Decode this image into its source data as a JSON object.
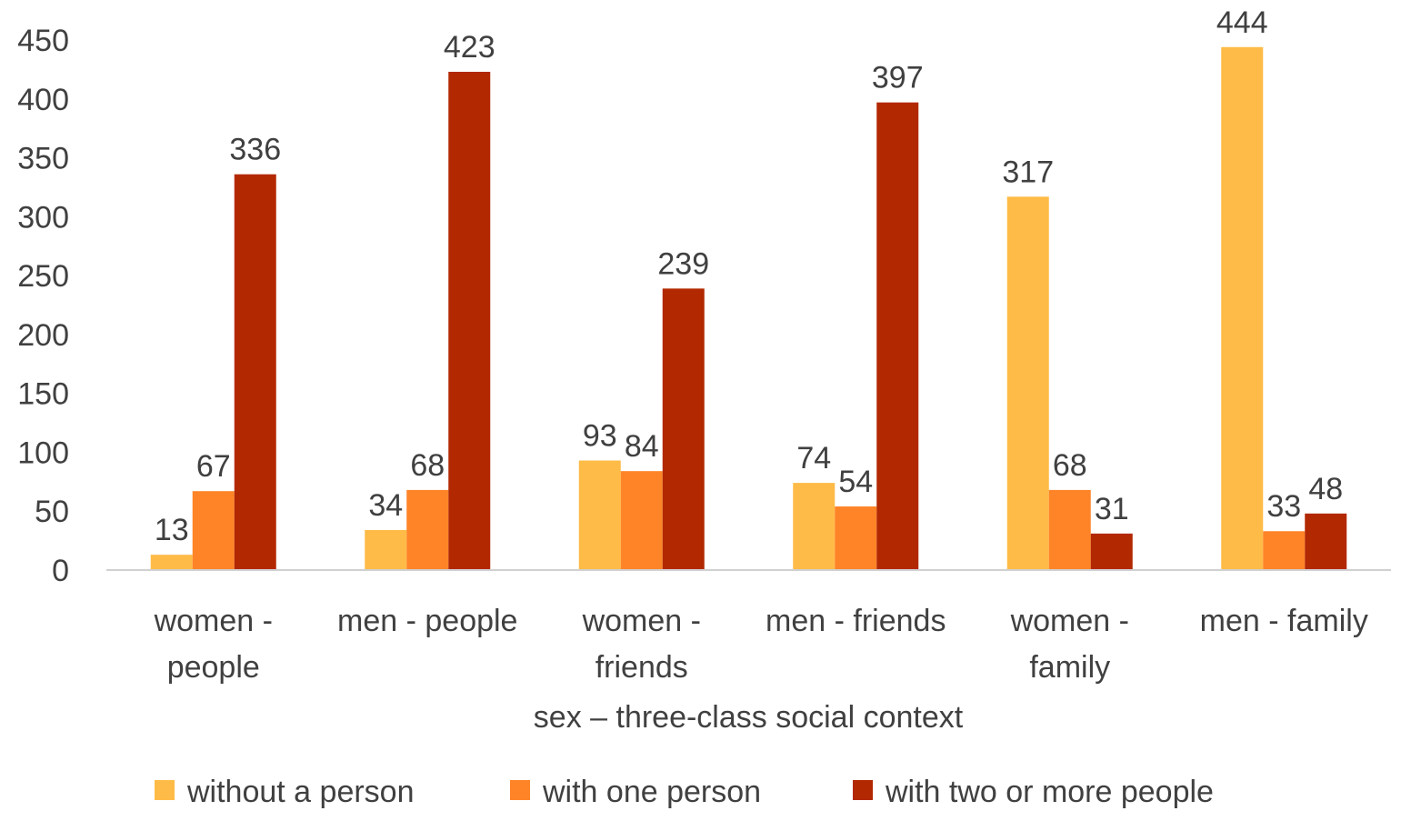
{
  "chart_data": {
    "type": "bar",
    "title": "",
    "xlabel": "sex – three-class social context",
    "ylabel": "",
    "ylim": [
      0,
      450
    ],
    "yticks": [
      0,
      50,
      100,
      150,
      200,
      250,
      300,
      350,
      400,
      450
    ],
    "grid": false,
    "legend_position": "bottom",
    "categories": [
      [
        "women -",
        "people"
      ],
      [
        "men - people"
      ],
      [
        "women -",
        "friends"
      ],
      [
        "men - friends"
      ],
      [
        "women -",
        "family"
      ],
      [
        "men - family"
      ]
    ],
    "series": [
      {
        "name": "without a person",
        "color": "#FFBB47",
        "values": [
          13,
          34,
          93,
          74,
          317,
          444
        ]
      },
      {
        "name": "with one person",
        "color": "#FF8427",
        "values": [
          67,
          68,
          84,
          54,
          68,
          33
        ]
      },
      {
        "name": "with two or more people",
        "color": "#B22800",
        "values": [
          336,
          423,
          239,
          397,
          31,
          48
        ]
      }
    ]
  }
}
